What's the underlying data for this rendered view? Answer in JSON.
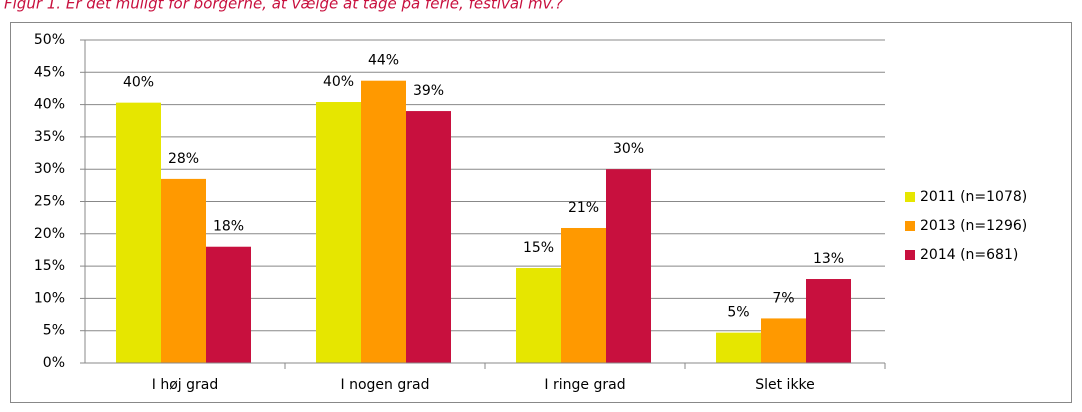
{
  "chart_data": {
    "type": "bar",
    "title": "Figur 1. Er det muligt for borgerne, at vælge at tage på ferie, festival mv.?",
    "categories": [
      "I høj grad",
      "I nogen grad",
      "I ringe grad",
      "Slet ikke"
    ],
    "series": [
      {
        "name": "2011 (n=1078)",
        "color": "#e6e600",
        "values": [
          40.3,
          40.4,
          14.7,
          4.7
        ],
        "value_labels": [
          "40%",
          "40%",
          "15%",
          "5%"
        ]
      },
      {
        "name": "2013 (n=1296)",
        "color": "#ff9900",
        "values": [
          28.5,
          43.7,
          20.9,
          6.9
        ],
        "value_labels": [
          "28%",
          "44%",
          "21%",
          "7%"
        ]
      },
      {
        "name": "2014 (n=681)",
        "color": "#c8103e",
        "values": [
          18,
          39,
          30,
          13
        ],
        "value_labels": [
          "18%",
          "39%",
          "30%",
          "13%"
        ]
      }
    ],
    "ylim": [
      0,
      50
    ],
    "yticks": [
      {
        "value": 0,
        "label": "0%"
      },
      {
        "value": 5,
        "label": "5%"
      },
      {
        "value": 10,
        "label": "10%"
      },
      {
        "value": 15,
        "label": "15%"
      },
      {
        "value": 20,
        "label": "20%"
      },
      {
        "value": 25,
        "label": "25%"
      },
      {
        "value": 30,
        "label": "30%"
      },
      {
        "value": 35,
        "label": "35%"
      },
      {
        "value": 40,
        "label": "40%"
      },
      {
        "value": 45,
        "label": "45%"
      },
      {
        "value": 50,
        "label": "50%"
      }
    ],
    "grid": true,
    "legend": "right"
  }
}
